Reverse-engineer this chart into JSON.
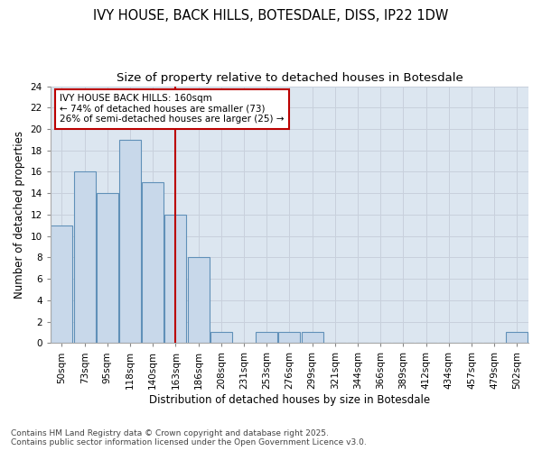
{
  "title_line1": "IVY HOUSE, BACK HILLS, BOTESDALE, DISS, IP22 1DW",
  "title_line2": "Size of property relative to detached houses in Botesdale",
  "xlabel": "Distribution of detached houses by size in Botesdale",
  "ylabel": "Number of detached properties",
  "bins": [
    "50sqm",
    "73sqm",
    "95sqm",
    "118sqm",
    "140sqm",
    "163sqm",
    "186sqm",
    "208sqm",
    "231sqm",
    "253sqm",
    "276sqm",
    "299sqm",
    "321sqm",
    "344sqm",
    "366sqm",
    "389sqm",
    "412sqm",
    "434sqm",
    "457sqm",
    "479sqm",
    "502sqm"
  ],
  "values": [
    11,
    16,
    14,
    19,
    15,
    12,
    8,
    1,
    0,
    1,
    1,
    1,
    0,
    0,
    0,
    0,
    0,
    0,
    0,
    0,
    1
  ],
  "bar_color": "#c8d8ea",
  "bar_edge_color": "#6090b8",
  "grid_color": "#c8d0dc",
  "plot_bg_color": "#dce6f0",
  "fig_bg_color": "#ffffff",
  "ref_line_x": 5.0,
  "ref_line_color": "#bb0000",
  "annotation_line1": "IVY HOUSE BACK HILLS: 160sqm",
  "annotation_line2": "← 74% of detached houses are smaller (73)",
  "annotation_line3": "26% of semi-detached houses are larger (25) →",
  "annotation_box_edge_color": "#bb0000",
  "ylim": [
    0,
    24
  ],
  "yticks": [
    0,
    2,
    4,
    6,
    8,
    10,
    12,
    14,
    16,
    18,
    20,
    22,
    24
  ],
  "footnote": "Contains HM Land Registry data © Crown copyright and database right 2025.\nContains public sector information licensed under the Open Government Licence v3.0.",
  "title_fontsize": 10.5,
  "subtitle_fontsize": 9.5,
  "tick_fontsize": 7.5,
  "label_fontsize": 8.5,
  "annot_fontsize": 7.5,
  "footnote_fontsize": 6.5
}
